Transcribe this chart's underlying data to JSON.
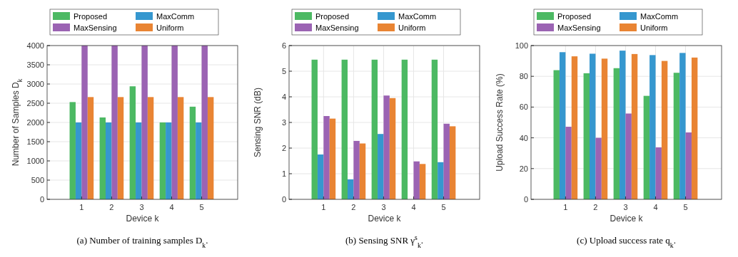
{
  "chart_data": [
    {
      "type": "bar",
      "title": "(a) Number of training samples D$_{k}$.",
      "xlabel": "Device k",
      "ylabel": "Number of Samples D$_{k}$",
      "categories": [
        "1",
        "2",
        "3",
        "4",
        "5"
      ],
      "ylim": [
        0,
        4000
      ],
      "yticks": [
        0,
        500,
        1000,
        1500,
        2000,
        2500,
        3000,
        3500,
        4000
      ],
      "grid": true,
      "legend": "top",
      "series": [
        {
          "name": "Proposed",
          "color": "#4cb963",
          "values": [
            2530,
            2130,
            2940,
            2000,
            2410
          ]
        },
        {
          "name": "MaxComm",
          "color": "#3597cf",
          "values": [
            2000,
            2000,
            2000,
            2000,
            2000
          ]
        },
        {
          "name": "MaxSensing",
          "color": "#9b63b3",
          "values": [
            4000,
            4000,
            4000,
            4000,
            4000
          ]
        },
        {
          "name": "Uniform",
          "color": "#e98433",
          "values": [
            2660,
            2660,
            2660,
            2660,
            2660
          ]
        }
      ]
    },
    {
      "type": "bar",
      "title": "(b) Sensing SNR γ$^{s}$$_{k}$.",
      "xlabel": "Device k",
      "ylabel": "Sensing SNR (dB)",
      "categories": [
        "1",
        "2",
        "3",
        "4",
        "5"
      ],
      "ylim": [
        0,
        6
      ],
      "yticks": [
        0,
        1,
        2,
        3,
        4,
        5,
        6
      ],
      "grid": true,
      "legend": "top",
      "series": [
        {
          "name": "Proposed",
          "color": "#4cb963",
          "values": [
            5.45,
            5.45,
            5.45,
            5.45,
            5.45
          ]
        },
        {
          "name": "MaxComm",
          "color": "#3597cf",
          "values": [
            1.75,
            0.78,
            2.55,
            0,
            1.45
          ]
        },
        {
          "name": "MaxSensing",
          "color": "#9b63b3",
          "values": [
            3.25,
            2.28,
            4.05,
            1.48,
            2.95
          ]
        },
        {
          "name": "Uniform",
          "color": "#e98433",
          "values": [
            3.15,
            2.18,
            3.95,
            1.38,
            2.85
          ]
        }
      ]
    },
    {
      "type": "bar",
      "title": "(c) Upload success rate q$_{k}$.",
      "xlabel": "Device k",
      "ylabel": "Upload Success Rate (%)",
      "categories": [
        "1",
        "2",
        "3",
        "4",
        "5"
      ],
      "ylim": [
        0,
        100
      ],
      "yticks": [
        0,
        20,
        40,
        60,
        80,
        100
      ],
      "grid": true,
      "legend": "top",
      "series": [
        {
          "name": "Proposed",
          "color": "#4cb963",
          "values": [
            84,
            82,
            85.3,
            67.3,
            82.3
          ]
        },
        {
          "name": "MaxComm",
          "color": "#3597cf",
          "values": [
            95.7,
            94.7,
            96.7,
            93.8,
            95.2
          ]
        },
        {
          "name": "MaxSensing",
          "color": "#9b63b3",
          "values": [
            47.2,
            40,
            55.8,
            33.8,
            43.5
          ]
        },
        {
          "name": "Uniform",
          "color": "#e98433",
          "values": [
            93,
            91.5,
            94.5,
            90,
            92.2
          ]
        }
      ]
    }
  ]
}
